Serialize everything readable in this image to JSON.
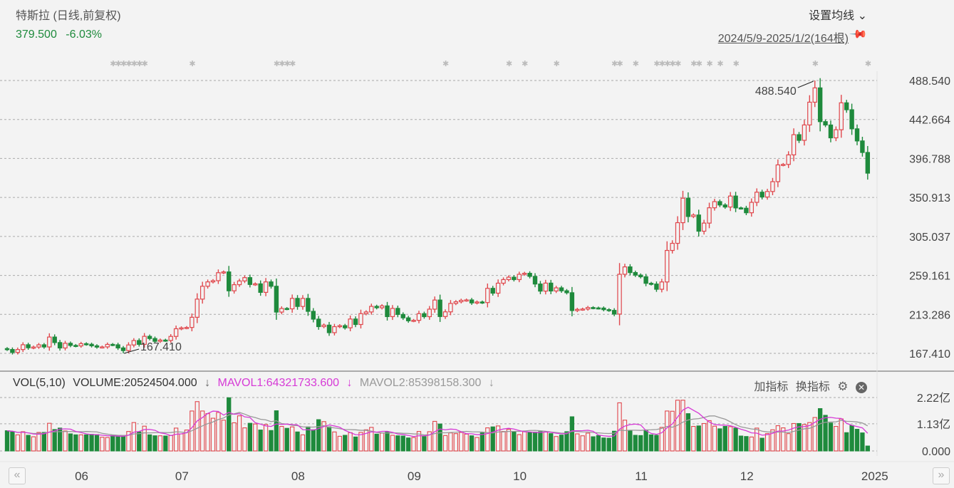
{
  "header": {
    "title": "特斯拉 (日线,前复权)",
    "price": "379.500",
    "change": "-6.03%",
    "ma_settings": "设置均线 ⌄",
    "range": "2024/5/9-2025/1/2(164根)"
  },
  "volume_panel": {
    "label": "VOL(5,10)",
    "volume": "VOLUME:20524504.000",
    "mavol1": "MAVOL1:64321733.600",
    "mavol2": "MAVOL2:85398158.300",
    "arrow": "↓",
    "add_indicator": "加指标",
    "switch_indicator": "换指标"
  },
  "colors": {
    "up": "#e0474c",
    "down": "#1e8a3c",
    "mavol1": "#d63ad6",
    "mavol2": "#999999"
  },
  "chart_data": {
    "type": "candlestick",
    "title": "特斯拉 (日线,前复权)",
    "price_ticks": [
      "488.540",
      "442.664",
      "396.788",
      "350.913",
      "305.037",
      "259.161",
      "213.286",
      "167.410"
    ],
    "price_range": [
      167.41,
      488.54
    ],
    "volume_ticks": [
      "2.22亿",
      "1.13亿",
      "0.000"
    ],
    "volume_range_millions": [
      0,
      222
    ],
    "month_labels": [
      {
        "label": "06",
        "index": 16
      },
      {
        "label": "07",
        "index": 35
      },
      {
        "label": "08",
        "index": 57
      },
      {
        "label": "09",
        "index": 79
      },
      {
        "label": "10",
        "index": 99
      },
      {
        "label": "11",
        "index": 122
      },
      {
        "label": "12",
        "index": 142
      },
      {
        "label": "2025",
        "index": 163
      }
    ],
    "max_annotation": {
      "label": "488.540",
      "index": 153,
      "value": 488.54
    },
    "min_annotation": {
      "label": "167.410",
      "index": 22,
      "value": 167.41
    },
    "first_open": 173.0,
    "close": [
      171.97,
      168.47,
      171.89,
      177.55,
      173.99,
      174.84,
      177.46,
      174.95,
      186.6,
      180.11,
      173.74,
      179.24,
      176.75,
      176.19,
      178.79,
      178.08,
      176.29,
      174.77,
      175.0,
      177.94,
      177.48,
      173.79,
      170.66,
      177.29,
      182.47,
      178.01,
      187.44,
      184.86,
      181.57,
      183.01,
      182.58,
      187.35,
      196.37,
      197.42,
      197.88,
      209.86,
      231.26,
      246.39,
      251.52,
      252.94,
      262.33,
      263.26,
      241.03,
      248.23,
      252.64,
      256.56,
      248.5,
      249.23,
      239.2,
      251.51,
      246.38,
      215.99,
      220.25,
      219.8,
      232.1,
      222.62,
      232.07,
      216.86,
      207.67,
      198.88,
      200.64,
      191.76,
      198.84,
      200.0,
      197.49,
      207.83,
      201.38,
      214.14,
      216.12,
      222.72,
      221.1,
      223.27,
      210.66,
      220.32,
      213.21,
      209.21,
      205.75,
      206.28,
      214.11,
      210.6,
      219.41,
      230.17,
      210.73,
      216.27,
      226.17,
      228.13,
      229.81,
      230.29,
      226.78,
      227.87,
      227.2,
      243.92,
      238.25,
      250.0,
      254.27,
      257.02,
      254.22,
      260.46,
      261.63,
      258.02,
      249.02,
      240.66,
      250.08,
      240.83,
      244.5,
      241.05,
      238.77,
      217.8,
      219.16,
      219.57,
      221.33,
      220.89,
      220.7,
      218.85,
      217.97,
      213.65,
      260.48,
      269.19,
      262.51,
      259.52,
      257.55,
      249.85,
      248.98,
      242.84,
      251.44,
      288.53,
      296.91,
      321.22,
      350.0,
      328.49,
      330.24,
      311.18,
      320.72,
      338.74,
      346.0,
      342.03,
      339.64,
      352.56,
      338.59,
      338.23,
      332.89,
      345.16,
      357.09,
      351.42,
      357.93,
      369.49,
      389.22,
      389.79,
      400.99,
      424.77,
      418.1,
      436.23,
      463.02,
      479.86,
      440.13,
      436.17,
      421.06,
      430.6,
      462.28,
      454.13,
      431.66,
      417.41,
      403.84,
      379.5
    ],
    "volume_millions": [
      84,
      80,
      67,
      80,
      65,
      59,
      77,
      77,
      115,
      89,
      95,
      83,
      71,
      67,
      67,
      67,
      69,
      68,
      57,
      56,
      64,
      63,
      64,
      81,
      118,
      79,
      103,
      67,
      63,
      63,
      62,
      64,
      95,
      71,
      87,
      166,
      205,
      166,
      155,
      136,
      160,
      128,
      221,
      117,
      146,
      96,
      115,
      112,
      87,
      110,
      85,
      167,
      102,
      94,
      100,
      79,
      67,
      100,
      88,
      130,
      122,
      100,
      79,
      61,
      65,
      76,
      58,
      77,
      88,
      98,
      70,
      74,
      79,
      65,
      63,
      62,
      54,
      56,
      81,
      60,
      80,
      123,
      112,
      64,
      75,
      72,
      77,
      70,
      63,
      56,
      75,
      96,
      100,
      104,
      81,
      90,
      80,
      68,
      80,
      78,
      78,
      80,
      79,
      72,
      60,
      66,
      80,
      142,
      71,
      63,
      74,
      59,
      64,
      54,
      53,
      82,
      200,
      128,
      84,
      65,
      64,
      84,
      67,
      65,
      98,
      166,
      165,
      211,
      211,
      155,
      102,
      104,
      114,
      126,
      103,
      92,
      102,
      101,
      95,
      62,
      60,
      58,
      95,
      53,
      72,
      88,
      105,
      96,
      72,
      114,
      114,
      110,
      118,
      139,
      176,
      148,
      116,
      102,
      133,
      76,
      106,
      90,
      75,
      20.5
    ]
  }
}
